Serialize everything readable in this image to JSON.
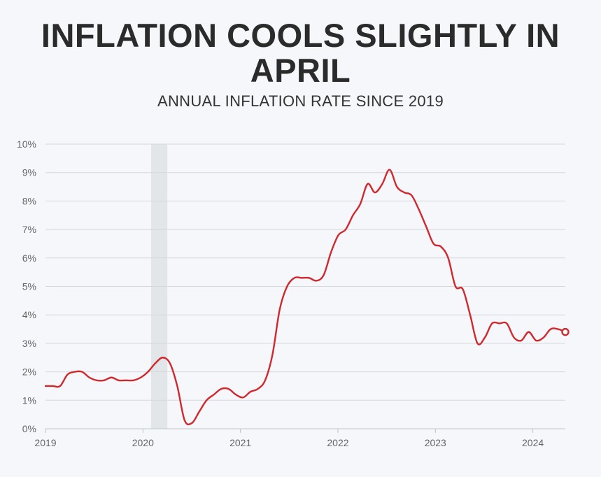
{
  "chart_data": {
    "type": "line",
    "title": "INFLATION COOLS SLIGHTLY IN APRIL",
    "subtitle": "ANNUAL INFLATION RATE SINCE 2019",
    "xlabel": "",
    "ylabel": "",
    "ylim": [
      0,
      10
    ],
    "xlim": [
      2019.0,
      2024.333
    ],
    "y_ticks": [
      "0%",
      "1%",
      "2%",
      "3%",
      "4%",
      "5%",
      "6%",
      "7%",
      "8%",
      "9%",
      "10%"
    ],
    "x_ticks": [
      {
        "label": "2019",
        "value": 2019.0
      },
      {
        "label": "2020",
        "value": 2020.0
      },
      {
        "label": "2021",
        "value": 2021.0
      },
      {
        "label": "2022",
        "value": 2022.0
      },
      {
        "label": "2023",
        "value": 2023.0
      },
      {
        "label": "2024",
        "value": 2024.0
      }
    ],
    "grid": true,
    "recession_band": [
      2020.083,
      2020.25
    ],
    "colors": {
      "line": "#d1282e",
      "grid": "#d5d8dc",
      "band": "#e3e6e9",
      "text": "#666666"
    },
    "series": [
      {
        "name": "Annual inflation rate",
        "unit": "%",
        "values": [
          1.5,
          1.5,
          1.5,
          1.9,
          2.0,
          2.0,
          1.8,
          1.7,
          1.7,
          1.8,
          1.7,
          1.7,
          1.7,
          1.8,
          2.0,
          2.3,
          2.5,
          2.3,
          1.5,
          0.3,
          0.2,
          0.6,
          1.0,
          1.2,
          1.4,
          1.4,
          1.2,
          1.1,
          1.3,
          1.4,
          1.7,
          2.6,
          4.2,
          5.0,
          5.3,
          5.3,
          5.3,
          5.2,
          5.4,
          6.2,
          6.8,
          7.0,
          7.5,
          7.9,
          8.6,
          8.3,
          8.6,
          9.1,
          8.5,
          8.3,
          8.2,
          7.7,
          7.1,
          6.5,
          6.4,
          6.0,
          5.0,
          4.9,
          4.0,
          3.0,
          3.2,
          3.7,
          3.7,
          3.7,
          3.2,
          3.1,
          3.4,
          3.1,
          3.2,
          3.5,
          3.5,
          3.4
        ]
      }
    ]
  }
}
